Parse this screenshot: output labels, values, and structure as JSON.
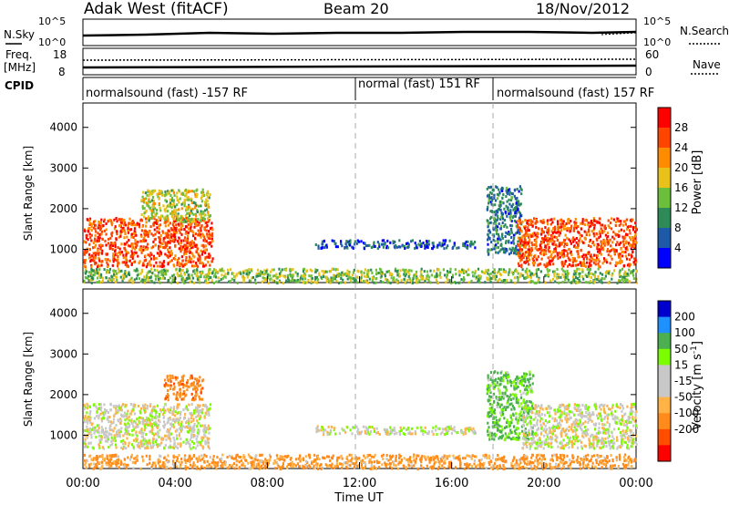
{
  "header": {
    "station": "Adak West (fitACF)",
    "beam": "Beam 20",
    "date": "18/Nov/2012"
  },
  "top_panels": {
    "nsky_label": "N.Sky",
    "nsky_ticks": [
      "10^5",
      "10^0"
    ],
    "nsearch_label": "N.Search",
    "nsearch_ticks": [
      "10^5",
      "10^0"
    ],
    "freq_label": "Freq.",
    "freq_unit": "[MHz]",
    "freq_ticks": [
      "18",
      "8"
    ],
    "nave_label": "Nave",
    "nave_ticks": [
      "60",
      "0"
    ],
    "cpid_label": "CPID"
  },
  "cpid_segments": [
    {
      "label": "normalsound (fast) -157 RF",
      "start_hour": 0
    },
    {
      "label": "normal (fast) 151 RF",
      "start_hour": 12
    },
    {
      "label": "normalsound (fast) 157 RF",
      "start_hour": 18
    }
  ],
  "colors": {
    "power_scale": [
      "#0000ff",
      "#1e5aa8",
      "#2e8b57",
      "#6cbf3a",
      "#e8c21a",
      "#ff8c00",
      "#ff4500",
      "#ff0000"
    ],
    "velocity_scale": [
      "#ff0000",
      "#ff4d00",
      "#ff8c1a",
      "#ffb347",
      "#c8c8c8",
      "#c8c8c8",
      "#7cfc00",
      "#4caf50",
      "#1e90ff",
      "#0000cd"
    ]
  },
  "chart_data": [
    {
      "type": "heatmap",
      "title": "Power",
      "xlabel": "Time UT",
      "ylabel": "Slant Range [km]",
      "colorbar_label": "Power [dB]",
      "colorbar_ticks": [
        "28",
        "24",
        "20",
        "16",
        "12",
        "8",
        "4"
      ],
      "xlim_hours": [
        0,
        24
      ],
      "ylim_km": [
        180,
        4600
      ],
      "y_ticks": [
        "4000",
        "3000",
        "2000",
        "1000"
      ],
      "x_ticks": [
        "00:00",
        "04:00",
        "08:00",
        "12:00",
        "16:00",
        "20:00",
        "00:00"
      ],
      "regions": [
        {
          "t0": 0.0,
          "t1": 5.6,
          "r0": 600,
          "r1": 1800,
          "value_db": 28
        },
        {
          "t0": 2.5,
          "t1": 5.5,
          "r0": 1700,
          "r1": 2500,
          "value_db": 18
        },
        {
          "t0": 10.0,
          "t1": 17.0,
          "r0": 1050,
          "r1": 1250,
          "value_db": 8
        },
        {
          "t0": 17.5,
          "t1": 19.0,
          "r0": 900,
          "r1": 2600,
          "value_db": 10
        },
        {
          "t0": 18.8,
          "t1": 24.0,
          "r0": 600,
          "r1": 1800,
          "value_db": 28
        },
        {
          "t0": 0.0,
          "t1": 24.0,
          "r0": 200,
          "r1": 550,
          "value_db": 16
        }
      ]
    },
    {
      "type": "heatmap",
      "title": "Velocity",
      "xlabel": "Time UT",
      "ylabel": "Slant Range [km]",
      "colorbar_label": "Velocity [m s^-1]",
      "colorbar_ticks": [
        "200",
        "100",
        "50",
        "15",
        "-15",
        "-50",
        "-100",
        "-200"
      ],
      "xlim_hours": [
        0,
        24
      ],
      "ylim_km": [
        180,
        4600
      ],
      "y_ticks": [
        "4000",
        "3000",
        "2000",
        "1000"
      ],
      "x_ticks": [
        "00:00",
        "04:00",
        "08:00",
        "12:00",
        "16:00",
        "20:00",
        "00:00"
      ],
      "regions": [
        {
          "t0": 0.0,
          "t1": 5.5,
          "r0": 700,
          "r1": 1800,
          "value_ms": 0
        },
        {
          "t0": 3.5,
          "t1": 5.2,
          "r0": 1900,
          "r1": 2500,
          "value_ms": -60
        },
        {
          "t0": 10.0,
          "t1": 17.0,
          "r0": 1050,
          "r1": 1250,
          "value_ms": 0
        },
        {
          "t0": 17.5,
          "t1": 19.5,
          "r0": 900,
          "r1": 2600,
          "value_ms": 40
        },
        {
          "t0": 19.0,
          "t1": 24.0,
          "r0": 700,
          "r1": 1800,
          "value_ms": 0
        },
        {
          "t0": 0.0,
          "t1": 24.0,
          "r0": 200,
          "r1": 550,
          "value_ms": -40
        }
      ]
    }
  ]
}
